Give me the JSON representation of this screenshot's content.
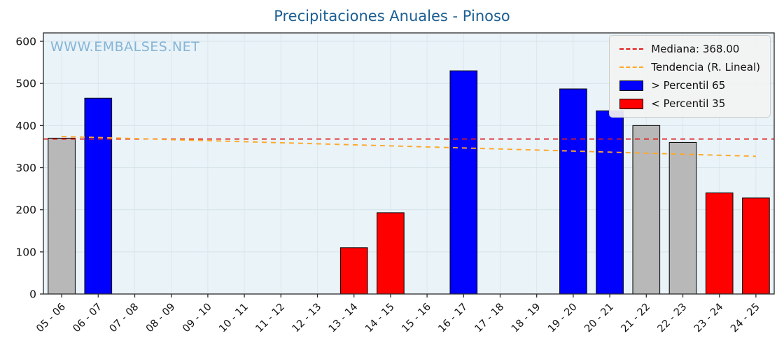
{
  "title": "Precipitaciones Anuales - Pinoso",
  "watermark": "WWW.EMBALSES.NET",
  "legend": {
    "items": [
      {
        "label": "Mediana: 368.00",
        "swatch": "median-dashed-line"
      },
      {
        "label": "Tendencia (R. Lineal)",
        "swatch": "trend-dashed-line"
      },
      {
        "label": "> Percentil 65",
        "swatch": "blue-patch"
      },
      {
        "label": "< Percentil 35",
        "swatch": "red-patch"
      }
    ],
    "position": "upper right"
  },
  "colors": {
    "title_color": "#1b5e92",
    "watermark_color": "#85b4d6",
    "plot_bg": "#e9f3f8",
    "grid": "#d6e3ea",
    "axis": "#2b2b2b",
    "tick_text": "#111111",
    "above_color": "#0000ff",
    "below_color": "#ff0000",
    "mid_color": "#b8b8b8",
    "bar_edge": "#000000",
    "median_color": "#e01b1b",
    "trend_color": "#ffa726"
  },
  "chart_data": {
    "type": "bar",
    "title": "Precipitaciones Anuales - Pinoso",
    "xlabel": "",
    "ylabel": "",
    "categories": [
      "05 - 06",
      "06 - 07",
      "07 - 08",
      "08 - 09",
      "09 - 10",
      "10 - 11",
      "11 - 12",
      "12 - 13",
      "13 - 14",
      "14 - 15",
      "15 - 16",
      "16 - 17",
      "17 - 18",
      "18 - 19",
      "19 - 20",
      "20 - 21",
      "21 - 22",
      "22 - 23",
      "23 - 24",
      "24 - 25"
    ],
    "values": [
      370,
      465,
      null,
      null,
      null,
      null,
      null,
      null,
      110,
      193,
      null,
      530,
      null,
      null,
      487,
      435,
      400,
      360,
      240,
      228
    ],
    "bar_kinds": [
      "mid",
      "above",
      null,
      null,
      null,
      null,
      null,
      null,
      "below",
      "below",
      null,
      "above",
      null,
      null,
      "above",
      "above",
      "mid",
      "mid",
      "below",
      "below"
    ],
    "kind_meaning": {
      "above": "> Percentil 65",
      "below": "< Percentil 35",
      "mid": "between percentiles"
    },
    "median": 368.0,
    "trend_linear": {
      "start": 374,
      "end": 327
    },
    "ylim": [
      0,
      620
    ],
    "yticks": [
      0,
      100,
      200,
      300,
      400,
      500,
      600
    ],
    "grid": true,
    "legend_position": "upper right"
  }
}
